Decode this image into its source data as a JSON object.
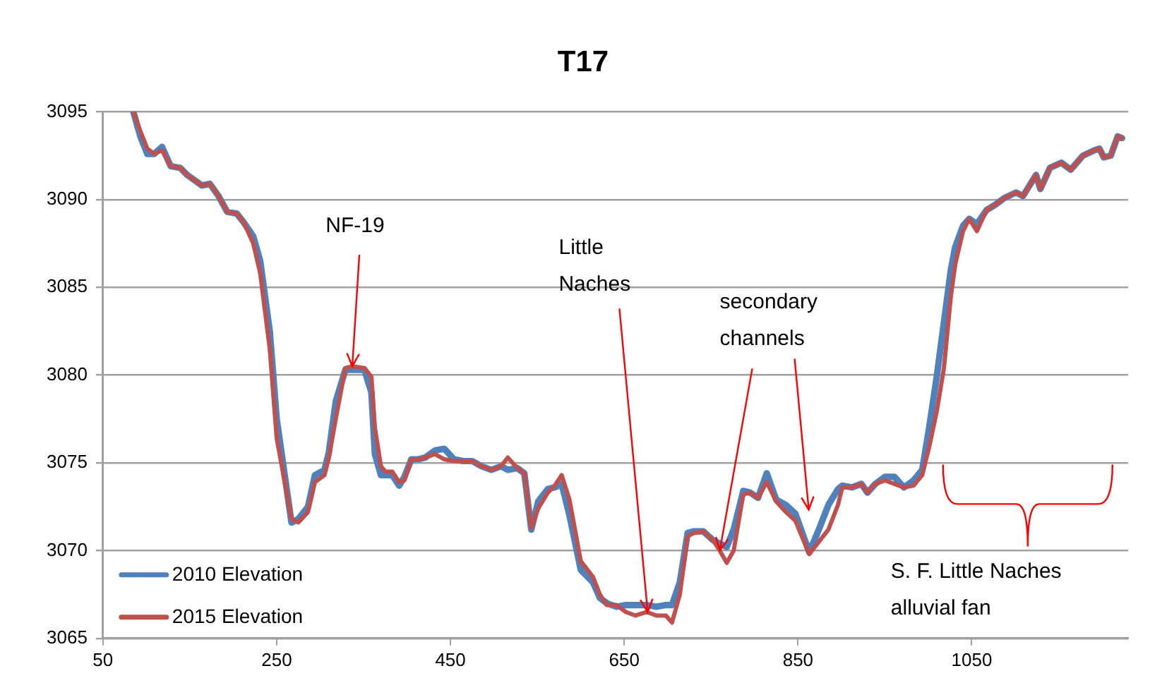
{
  "chart_data": {
    "type": "line",
    "title": "T17",
    "x": [
      85,
      93,
      101,
      109,
      118,
      128,
      139,
      147,
      164,
      173,
      183,
      193,
      204,
      212,
      223,
      231,
      242,
      250,
      267,
      275,
      286,
      294,
      305,
      310,
      318,
      329,
      337,
      351,
      359,
      363,
      370,
      375,
      383,
      391,
      397,
      405,
      413,
      421,
      432,
      443,
      454,
      465,
      475,
      486,
      497,
      508,
      516,
      527,
      535,
      543,
      551,
      562,
      570,
      578,
      587,
      600,
      614,
      622,
      630,
      641,
      652,
      663,
      676,
      687,
      698,
      705,
      714,
      723,
      730,
      741,
      752,
      760,
      768,
      776,
      787,
      795,
      804,
      814,
      825,
      836,
      847,
      863,
      874,
      885,
      896,
      901,
      912,
      923,
      930,
      939,
      950,
      961,
      972,
      983,
      993,
      1001,
      1010,
      1018,
      1026,
      1031,
      1040,
      1047,
      1056,
      1067,
      1077,
      1088,
      1101,
      1109,
      1124,
      1129,
      1140,
      1153,
      1164,
      1178,
      1191,
      1197,
      1202,
      1210,
      1218,
      1223
    ],
    "series": [
      {
        "name": "2010 Elevation",
        "color": "#4f81bd",
        "values": [
          3095,
          3093.6,
          3092.6,
          3092.6,
          3093.0,
          3091.9,
          3091.8,
          3091.4,
          3090.8,
          3090.9,
          3090.2,
          3089.3,
          3089.2,
          3088.7,
          3087.9,
          3086.5,
          3082.5,
          3077.5,
          3071.6,
          3071.8,
          3072.5,
          3074.3,
          3074.6,
          3075.6,
          3078.5,
          3080.3,
          3080.3,
          3080.3,
          3079.0,
          3075.5,
          3074.3,
          3074.3,
          3074.3,
          3073.7,
          3074.2,
          3075.2,
          3075.2,
          3075.3,
          3075.7,
          3075.8,
          3075.2,
          3075.1,
          3075.1,
          3074.8,
          3074.6,
          3074.8,
          3074.6,
          3074.7,
          3074.4,
          3071.2,
          3072.8,
          3073.5,
          3073.6,
          3073.8,
          3072.0,
          3068.9,
          3068.2,
          3067.3,
          3067.0,
          3066.8,
          3066.9,
          3066.9,
          3066.9,
          3066.8,
          3066.9,
          3066.9,
          3068.2,
          3071.0,
          3071.1,
          3071.1,
          3070.6,
          3070.4,
          3070.2,
          3071.2,
          3073.4,
          3073.3,
          3073.0,
          3074.4,
          3072.9,
          3072.6,
          3072.1,
          3069.9,
          3071.2,
          3072.6,
          3073.5,
          3073.7,
          3073.6,
          3073.8,
          3073.3,
          3073.8,
          3074.2,
          3074.2,
          3073.6,
          3074.0,
          3074.6,
          3077.0,
          3080.0,
          3083.0,
          3086.0,
          3087.3,
          3088.5,
          3088.9,
          3088.6,
          3089.4,
          3089.7,
          3090.1,
          3090.4,
          3090.2,
          3091.4,
          3090.6,
          3091.8,
          3092.1,
          3091.7,
          3092.5,
          3092.8,
          3092.9,
          3092.4,
          3092.5,
          3093.6,
          3093.5
        ]
      },
      {
        "name": "2015 Elevation",
        "color": "#c0504d",
        "values": [
          3095,
          3093.9,
          3092.9,
          3092.6,
          3092.8,
          3091.9,
          3091.8,
          3091.4,
          3090.8,
          3090.9,
          3090.2,
          3089.3,
          3089.2,
          3088.7,
          3087.5,
          3085.8,
          3081.5,
          3076.4,
          3071.8,
          3071.6,
          3072.2,
          3073.9,
          3074.3,
          3075.3,
          3077.5,
          3080.4,
          3080.5,
          3080.4,
          3079.9,
          3077.0,
          3074.8,
          3074.5,
          3074.5,
          3073.9,
          3074.0,
          3075.2,
          3075.2,
          3075.3,
          3075.5,
          3075.2,
          3075.1,
          3075.1,
          3075.1,
          3074.8,
          3074.6,
          3074.8,
          3075.3,
          3074.7,
          3074.4,
          3071.3,
          3072.4,
          3073.3,
          3073.7,
          3074.3,
          3072.9,
          3069.4,
          3068.5,
          3067.5,
          3066.9,
          3066.9,
          3066.5,
          3066.3,
          3066.5,
          3066.3,
          3066.3,
          3065.9,
          3067.5,
          3070.8,
          3071.0,
          3071.1,
          3070.6,
          3070.0,
          3069.3,
          3070.0,
          3073.2,
          3073.3,
          3073.0,
          3073.9,
          3072.8,
          3072.2,
          3071.7,
          3069.8,
          3070.5,
          3071.2,
          3072.6,
          3073.6,
          3073.6,
          3073.8,
          3073.3,
          3073.8,
          3074.0,
          3073.8,
          3073.6,
          3073.7,
          3074.3,
          3075.9,
          3078.0,
          3080.4,
          3084.5,
          3086.3,
          3088.2,
          3088.9,
          3088.2,
          3089.4,
          3089.7,
          3090.1,
          3090.4,
          3090.2,
          3091.4,
          3090.6,
          3091.8,
          3092.1,
          3091.7,
          3092.5,
          3092.8,
          3092.9,
          3092.4,
          3092.5,
          3093.6,
          3093.5
        ]
      }
    ],
    "xlim": [
      50,
      1230
    ],
    "xticks": [
      50,
      250,
      450,
      650,
      850,
      1050
    ],
    "ylim": [
      3065,
      3095
    ],
    "yticks": [
      3065,
      3070,
      3075,
      3080,
      3085,
      3090,
      3095
    ],
    "grid": "y",
    "legend": "bottom left",
    "marker": "none",
    "line_style": "solid",
    "annotations": [
      {
        "text": "NF-19",
        "x": 337,
        "y": 3080.5
      },
      {
        "text": "Little\nNaches",
        "x": 677,
        "y": 3066.5
      },
      {
        "text": "secondary\nchannels",
        "x": 760,
        "y": 3070.0
      },
      "S. F. Little Naches\nalluvial fan"
    ]
  }
}
